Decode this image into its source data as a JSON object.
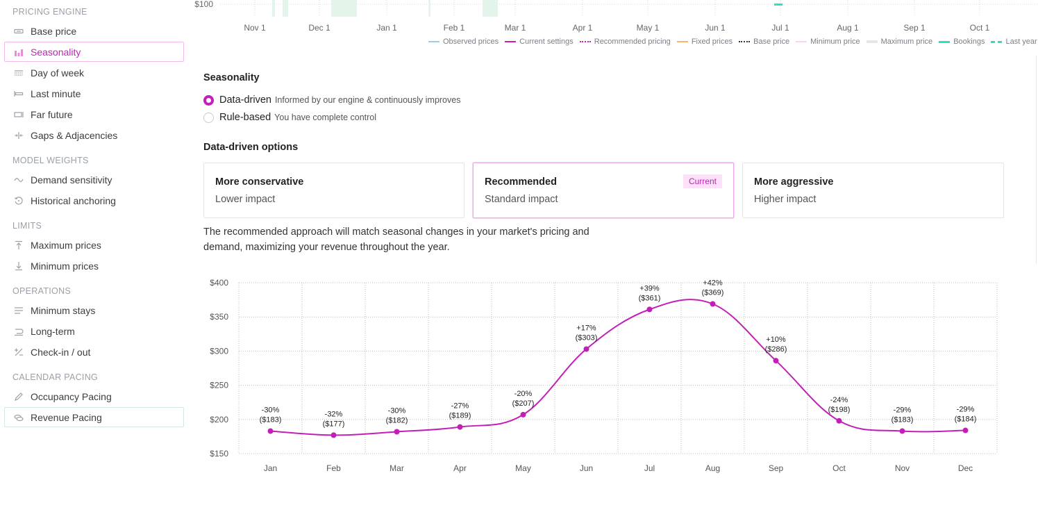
{
  "sidebar": {
    "sections": [
      {
        "title": "PRICING ENGINE",
        "items": [
          {
            "label": "Base price",
            "icon": "price-tag-icon"
          },
          {
            "label": "Seasonality",
            "icon": "bar-chart-icon",
            "active": true
          },
          {
            "label": "Day of week",
            "icon": "calendar-week-icon"
          },
          {
            "label": "Last minute",
            "icon": "timeline-short-icon"
          },
          {
            "label": "Far future",
            "icon": "timeline-long-icon"
          },
          {
            "label": "Gaps & Adjacencies",
            "icon": "gap-arrows-icon"
          }
        ]
      },
      {
        "title": "MODEL WEIGHTS",
        "items": [
          {
            "label": "Demand sensitivity",
            "icon": "wave-icon"
          },
          {
            "label": "Historical anchoring",
            "icon": "history-icon"
          }
        ]
      },
      {
        "title": "LIMITS",
        "items": [
          {
            "label": "Maximum prices",
            "icon": "arrow-up-limit-icon"
          },
          {
            "label": "Minimum prices",
            "icon": "arrow-down-limit-icon"
          }
        ]
      },
      {
        "title": "OPERATIONS",
        "items": [
          {
            "label": "Minimum stays",
            "icon": "lines-icon"
          },
          {
            "label": "Long-term",
            "icon": "long-term-icon"
          },
          {
            "label": "Check-in / out",
            "icon": "checkin-icon"
          }
        ]
      },
      {
        "title": "CALENDAR PACING",
        "items": [
          {
            "label": "Occupancy Pacing",
            "icon": "pencil-icon"
          },
          {
            "label": "Revenue Pacing",
            "icon": "coins-icon"
          }
        ]
      }
    ]
  },
  "top_chart": {
    "y_tick": "$100",
    "x_ticks": [
      "Nov 1",
      "Dec 1",
      "Jan 1",
      "Feb 1",
      "Mar 1",
      "Apr 1",
      "May 1",
      "Jun 1",
      "Jul 1",
      "Aug 1",
      "Sep 1",
      "Oct 1"
    ],
    "legend": [
      {
        "label": "Observed prices",
        "color": "#9ccbe8",
        "style": "solid"
      },
      {
        "label": "Current settings",
        "color": "#c21fb8",
        "style": "solid"
      },
      {
        "label": "Recommended pricing",
        "color": "#c21fb8",
        "style": "dotted"
      },
      {
        "label": "Fixed prices",
        "color": "#f2b96a",
        "style": "solid"
      },
      {
        "label": "Base price",
        "color": "#333333",
        "style": "dotted"
      },
      {
        "label": "Minimum price",
        "color": "#f7d7f3",
        "style": "solid"
      },
      {
        "label": "Maximum price",
        "color": "#e4e6e8",
        "style": "solid"
      },
      {
        "label": "Bookings",
        "color": "#2ee0c1",
        "style": "solid"
      },
      {
        "label": "Last year b",
        "color": "#2ee0c1",
        "style": "dashed"
      }
    ]
  },
  "seasonality": {
    "title": "Seasonality",
    "options": [
      {
        "label": "Data-driven",
        "desc": "Informed by our engine & continuously improves",
        "checked": true
      },
      {
        "label": "Rule-based",
        "desc": "You have complete control",
        "checked": false
      }
    ]
  },
  "data_driven": {
    "title": "Data-driven options",
    "cards": [
      {
        "title": "More conservative",
        "sub": "Lower impact",
        "selected": false
      },
      {
        "title": "Recommended",
        "sub": "Standard impact",
        "selected": true,
        "badge": "Current"
      },
      {
        "title": "More aggressive",
        "sub": "Higher impact",
        "selected": false
      }
    ],
    "description": "The recommended approach will match seasonal changes in your market's pricing and demand, maximizing your revenue throughout the year."
  },
  "chart_data": {
    "type": "line",
    "categories": [
      "Jan",
      "Feb",
      "Mar",
      "Apr",
      "May",
      "Jun",
      "Jul",
      "Aug",
      "Sep",
      "Oct",
      "Nov",
      "Dec"
    ],
    "values": [
      183,
      177,
      182,
      189,
      207,
      303,
      361,
      369,
      286,
      198,
      183,
      184
    ],
    "point_labels": [
      [
        "-30%",
        "($183)"
      ],
      [
        "-32%",
        "($177)"
      ],
      [
        "-30%",
        "($182)"
      ],
      [
        "-27%",
        "($189)"
      ],
      [
        "-20%",
        "($207)"
      ],
      [
        "+17%",
        "($303)"
      ],
      [
        "+39%",
        "($361)"
      ],
      [
        "+42%",
        "($369)"
      ],
      [
        "+10%",
        "($286)"
      ],
      [
        "-24%",
        "($198)"
      ],
      [
        "-29%",
        "($183)"
      ],
      [
        "-29%",
        "($184)"
      ]
    ],
    "y_ticks": [
      "$400",
      "$350",
      "$300",
      "$250",
      "$200",
      "$150"
    ],
    "y_tick_values": [
      400,
      350,
      300,
      250,
      200,
      150
    ],
    "ylim": [
      150,
      400
    ],
    "line_color": "#c21fb8",
    "grid": true,
    "grid_style": "dotted"
  }
}
